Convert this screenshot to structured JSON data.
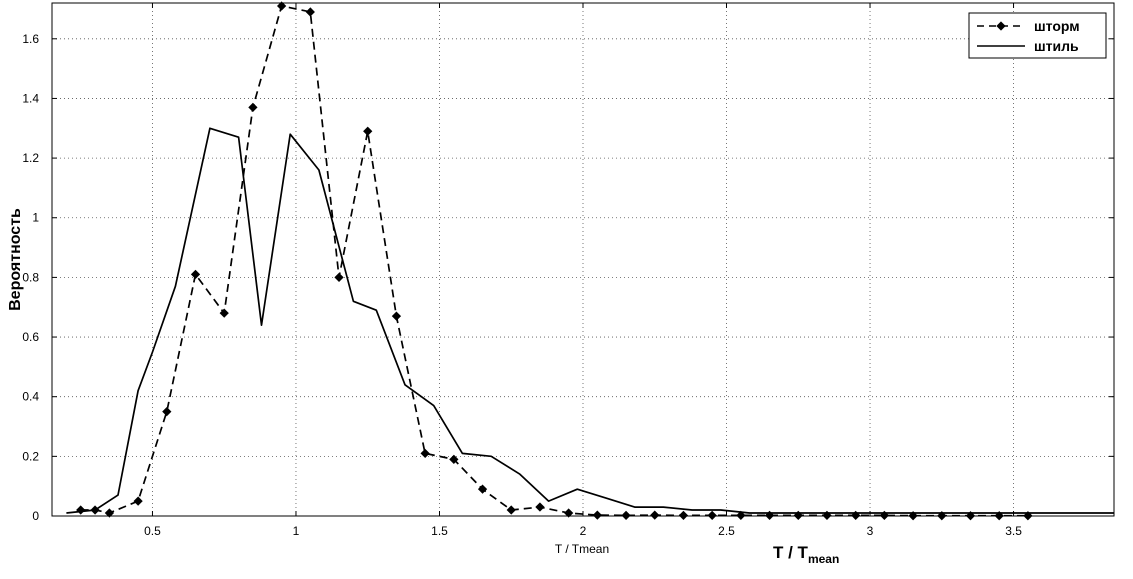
{
  "chart_data": {
    "type": "line",
    "title": "",
    "xlabel": "T / Tmean",
    "xlabel_big": {
      "main": "T / T",
      "subscript": "mean"
    },
    "ylabel": "Вероятность",
    "xlim": [
      0.15,
      3.85
    ],
    "ylim": [
      0,
      1.72
    ],
    "xticks": [
      0.5,
      1,
      1.5,
      2,
      2.5,
      3,
      3.5
    ],
    "xtick_labels": [
      "0.5",
      "1",
      "1.5",
      "2",
      "2.5",
      "3",
      "3.5"
    ],
    "yticks": [
      0,
      0.2,
      0.4,
      0.6,
      0.8,
      1,
      1.2,
      1.4,
      1.6
    ],
    "ytick_labels": [
      "0",
      "0.2",
      "0.4",
      "0.6",
      "0.8",
      "1",
      "1.2",
      "1.4",
      "1.6"
    ],
    "grid": true,
    "legend_position": "top-right",
    "series": [
      {
        "name": "шторм",
        "style": "dashed-marker",
        "color": "#000000",
        "x": [
          0.25,
          0.3,
          0.35,
          0.45,
          0.55,
          0.65,
          0.75,
          0.85,
          0.95,
          1.05,
          1.15,
          1.25,
          1.35,
          1.45,
          1.55,
          1.65,
          1.75,
          1.85,
          1.95,
          2.05,
          2.15,
          2.25,
          2.35,
          2.45,
          2.55,
          2.65,
          2.75,
          2.85,
          2.95,
          3.05,
          3.15,
          3.25,
          3.35,
          3.45,
          3.55
        ],
        "y": [
          0.02,
          0.02,
          0.01,
          0.05,
          0.35,
          0.81,
          0.68,
          1.37,
          1.71,
          1.69,
          0.8,
          1.29,
          0.67,
          0.21,
          0.19,
          0.09,
          0.02,
          0.03,
          0.01,
          0.003,
          0.002,
          0.003,
          0.002,
          0.002,
          0.002,
          0.002,
          0.002,
          0.002,
          0.002,
          0.002,
          0.001,
          0.001,
          0.001,
          0.001,
          0.001
        ]
      },
      {
        "name": "штиль",
        "style": "solid",
        "color": "#000000",
        "x": [
          0.2,
          0.3,
          0.38,
          0.45,
          0.5,
          0.58,
          0.7,
          0.8,
          0.88,
          0.98,
          1.08,
          1.2,
          1.28,
          1.38,
          1.48,
          1.58,
          1.68,
          1.78,
          1.88,
          1.98,
          2.08,
          2.18,
          2.28,
          2.38,
          2.48,
          2.58,
          2.68,
          2.78,
          2.88,
          2.98,
          3.1,
          3.3,
          3.5,
          3.7,
          3.85
        ],
        "y": [
          0.01,
          0.02,
          0.07,
          0.42,
          0.55,
          0.77,
          1.3,
          1.27,
          0.64,
          1.28,
          1.16,
          0.72,
          0.69,
          0.44,
          0.37,
          0.21,
          0.2,
          0.14,
          0.05,
          0.09,
          0.06,
          0.03,
          0.03,
          0.02,
          0.02,
          0.01,
          0.01,
          0.01,
          0.01,
          0.01,
          0.01,
          0.01,
          0.01,
          0.01,
          0.01
        ]
      }
    ]
  }
}
